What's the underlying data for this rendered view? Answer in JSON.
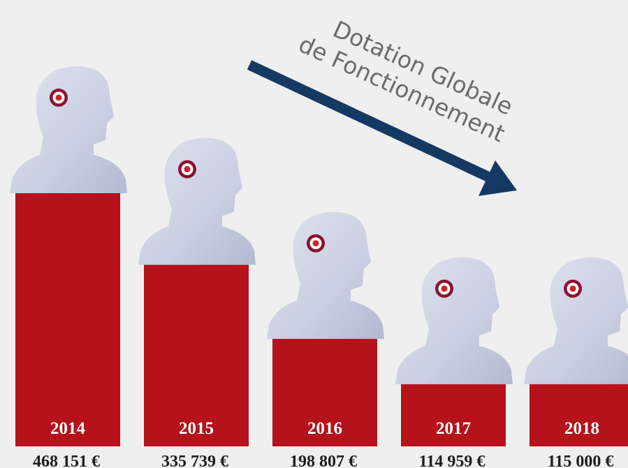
{
  "chart_data": {
    "type": "bar",
    "title": [
      "Dotation Globale",
      "de Fonctionnement"
    ],
    "categories": [
      "2014",
      "2015",
      "2016",
      "2017",
      "2018"
    ],
    "values": [
      468151,
      335739,
      198807,
      114959,
      115000
    ],
    "value_labels": [
      "468 151 €",
      "335 739 €",
      "198 807 €",
      "114 959 €",
      "115 000 €"
    ],
    "color": "#b5121b"
  }
}
